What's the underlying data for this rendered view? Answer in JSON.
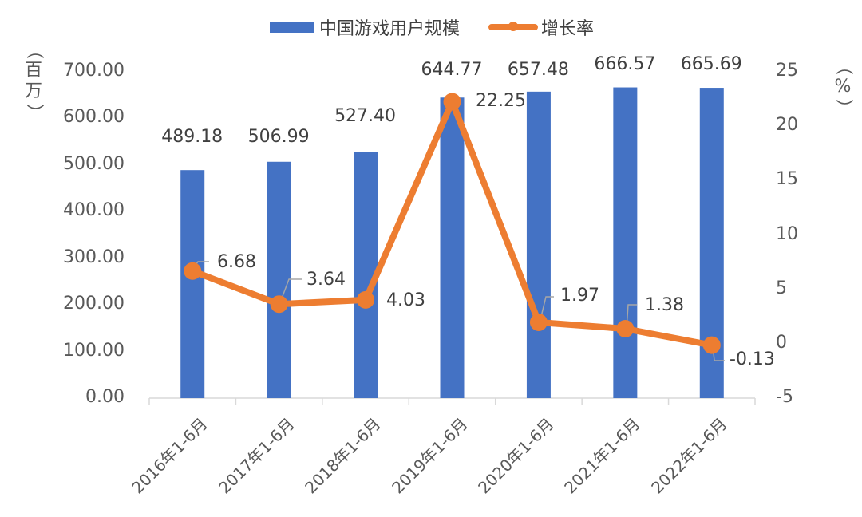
{
  "chart_data": {
    "type": "bar+line",
    "title": "",
    "categories": [
      "2016年1-6月",
      "2017年1-6月",
      "2018年1-6月",
      "2019年1-6月",
      "2020年1-6月",
      "2021年1-6月",
      "2022年1-6月"
    ],
    "series": [
      {
        "name": "中国游戏用户规模",
        "type": "bar",
        "axis": "left",
        "color": "#4472c4",
        "values": [
          489.18,
          506.99,
          527.4,
          644.77,
          657.48,
          666.57,
          665.69
        ],
        "labels": [
          "489.18",
          "506.99",
          "527.40",
          "644.77",
          "657.48",
          "666.57",
          "665.69"
        ]
      },
      {
        "name": "增长率",
        "type": "line",
        "axis": "right",
        "color": "#ed7d31",
        "values": [
          6.68,
          3.64,
          4.03,
          22.25,
          1.97,
          1.38,
          -0.13
        ],
        "labels": [
          "6.68",
          "3.64",
          "4.03",
          "22.25",
          "1.97",
          "1.38",
          "-0.13"
        ]
      }
    ],
    "ylabel": "（百万）",
    "y2label": "（%）",
    "ylim": [
      0,
      700
    ],
    "y2lim": [
      -5,
      25
    ],
    "yticks": [
      "700.00",
      "600.00",
      "500.00",
      "400.00",
      "300.00",
      "200.00",
      "100.00",
      "0.00"
    ],
    "y2ticks": [
      "25",
      "20",
      "15",
      "10",
      "5",
      "0",
      "-5"
    ],
    "legend_position": "top",
    "grid": false
  },
  "legend": {
    "bar_label": "中国游戏用户规模",
    "line_label": "增长率"
  },
  "axis": {
    "left_unit": [
      "（",
      "百",
      "万",
      "）"
    ],
    "right_unit": [
      "（",
      "%",
      "）"
    ]
  }
}
